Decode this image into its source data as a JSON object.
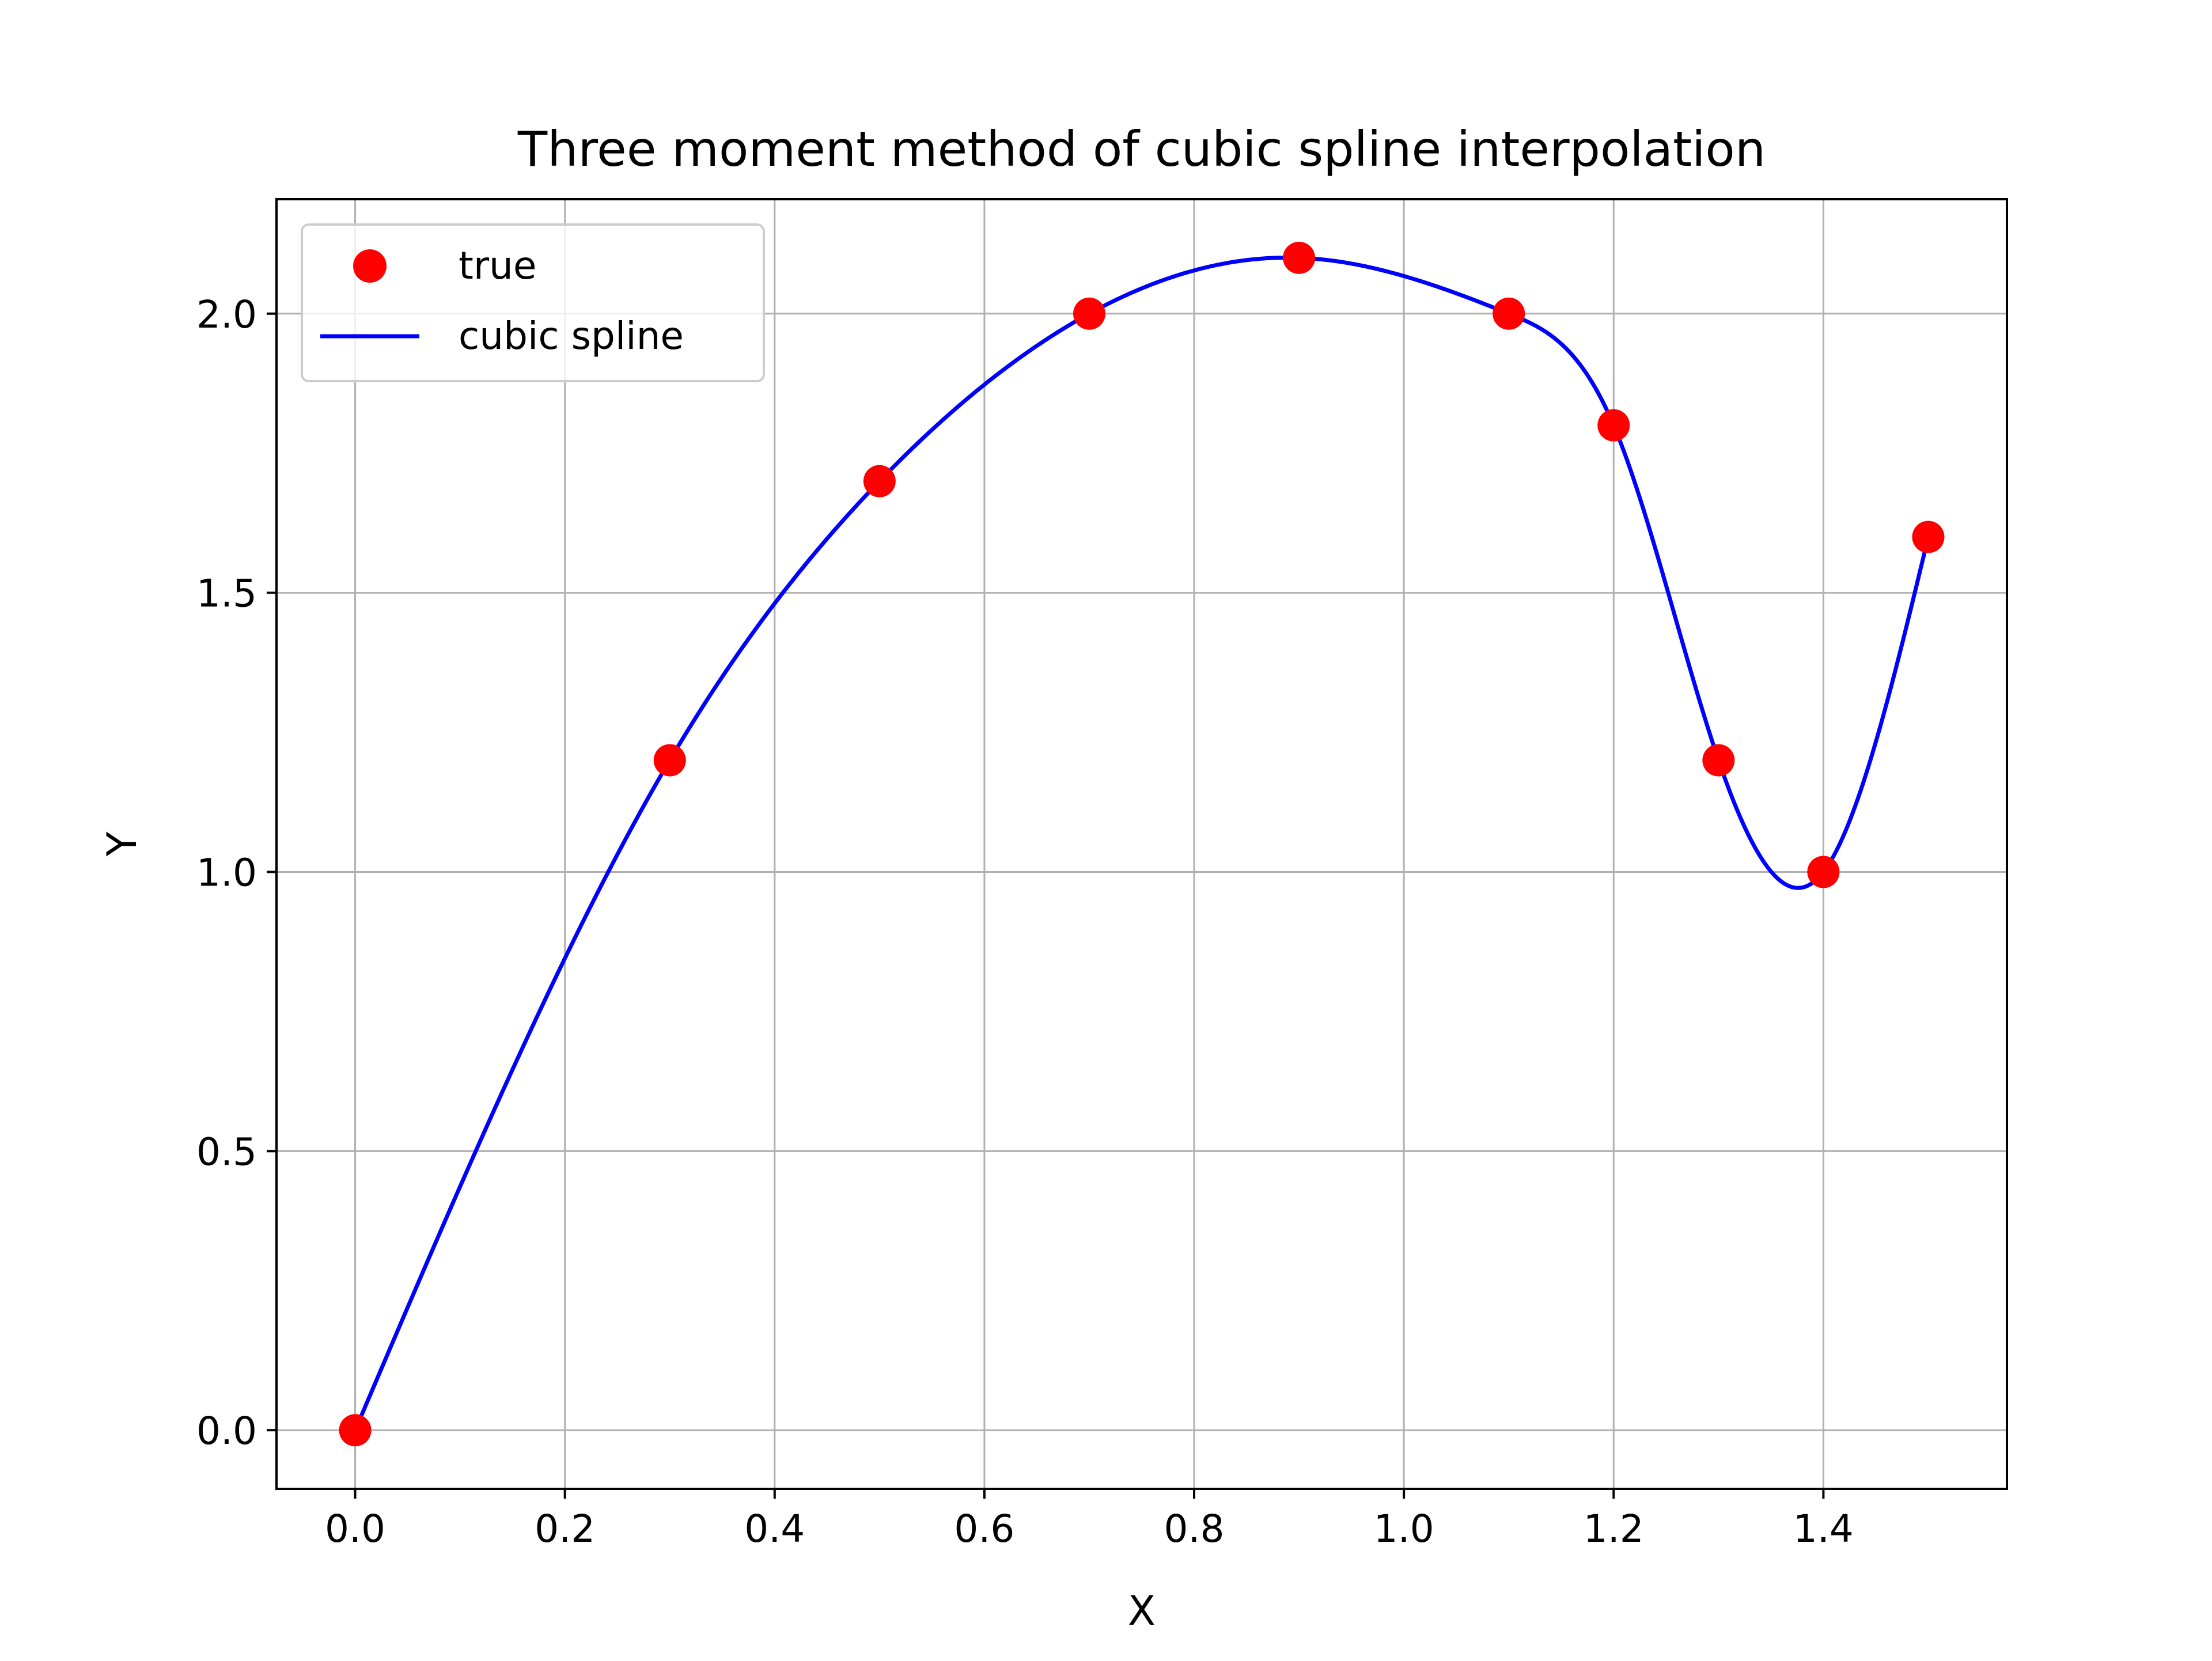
{
  "chart_data": {
    "type": "line",
    "title": "Three moment method of cubic spline interpolation",
    "xlabel": "X",
    "ylabel": "Y",
    "xlim": [
      -0.075,
      1.575
    ],
    "ylim": [
      -0.105,
      2.205
    ],
    "x_ticks": [
      "0.0",
      "0.2",
      "0.4",
      "0.6",
      "0.8",
      "1.0",
      "1.2",
      "1.4"
    ],
    "y_ticks": [
      "0.0",
      "0.5",
      "1.0",
      "1.5",
      "2.0"
    ],
    "grid": true,
    "legend_position": "top-left",
    "series": [
      {
        "name": "true",
        "kind": "markers",
        "color": "#ff0000",
        "x": [
          0.0,
          0.3,
          0.5,
          0.7,
          0.9,
          1.1,
          1.2,
          1.3,
          1.4,
          1.5
        ],
        "y": [
          0.0,
          1.2,
          1.7,
          2.0,
          2.1,
          2.0,
          1.8,
          1.2,
          1.0,
          1.6
        ]
      },
      {
        "name": "cubic spline",
        "kind": "line",
        "color": "#0000ff",
        "x": [
          0.0,
          0.3,
          0.5,
          0.7,
          0.9,
          1.1,
          1.2,
          1.3,
          1.4,
          1.5
        ],
        "y": [
          0.0,
          1.2,
          1.7,
          2.0,
          2.1,
          2.0,
          1.8,
          1.2,
          1.0,
          1.6
        ]
      }
    ]
  }
}
